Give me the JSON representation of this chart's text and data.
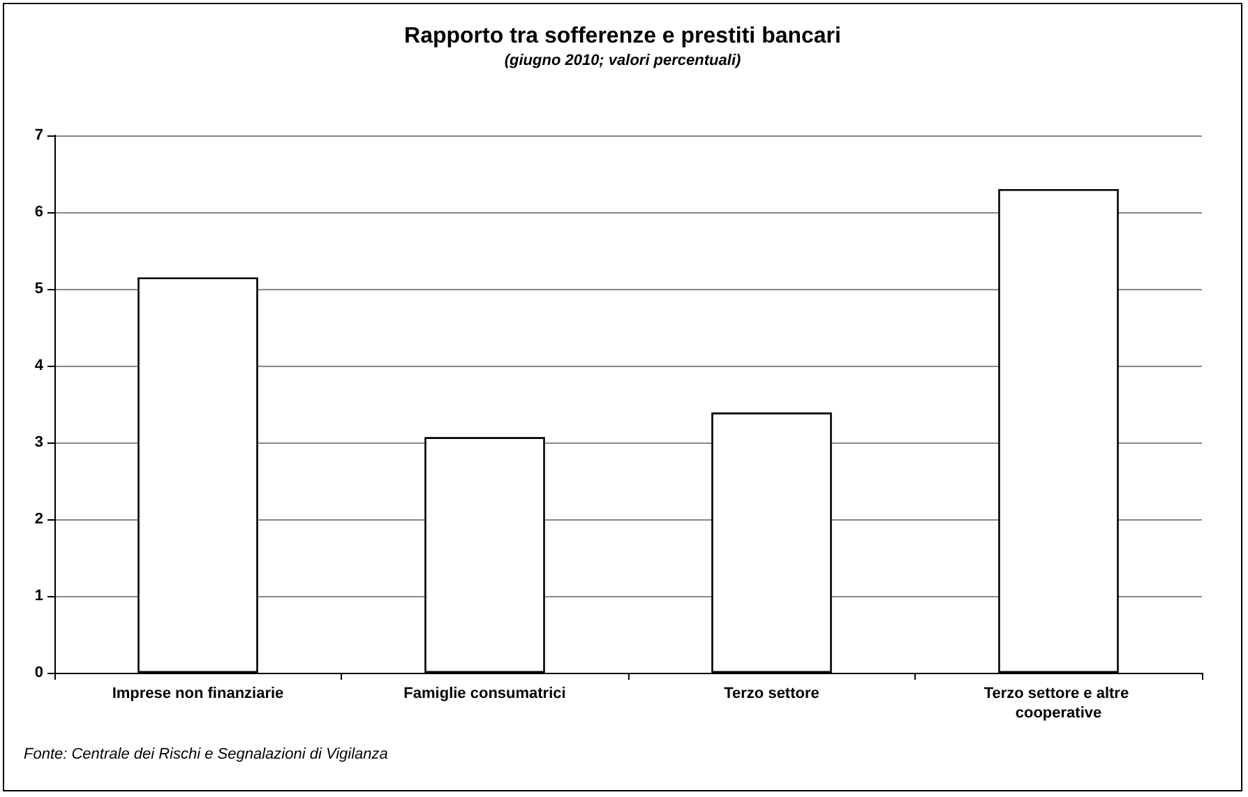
{
  "chart_data": {
    "type": "bar",
    "title": "Rapporto tra sofferenze e prestiti bancari",
    "subtitle": "(giugno 2010; valori percentuali)",
    "categories": [
      "Imprese non finanziarie",
      "Famiglie consumatrici",
      "Terzo settore",
      "Terzo settore e altre cooperative"
    ],
    "values": [
      5.15,
      3.07,
      3.39,
      6.3
    ],
    "color": "#ffffff",
    "ylim": [
      0,
      7
    ],
    "yticks": [
      0,
      1,
      2,
      3,
      4,
      5,
      6,
      7
    ],
    "grid": "y",
    "annotations": [
      "Fonte: Centrale dei Rischi e Segnalazioni di Vigilanza"
    ]
  }
}
